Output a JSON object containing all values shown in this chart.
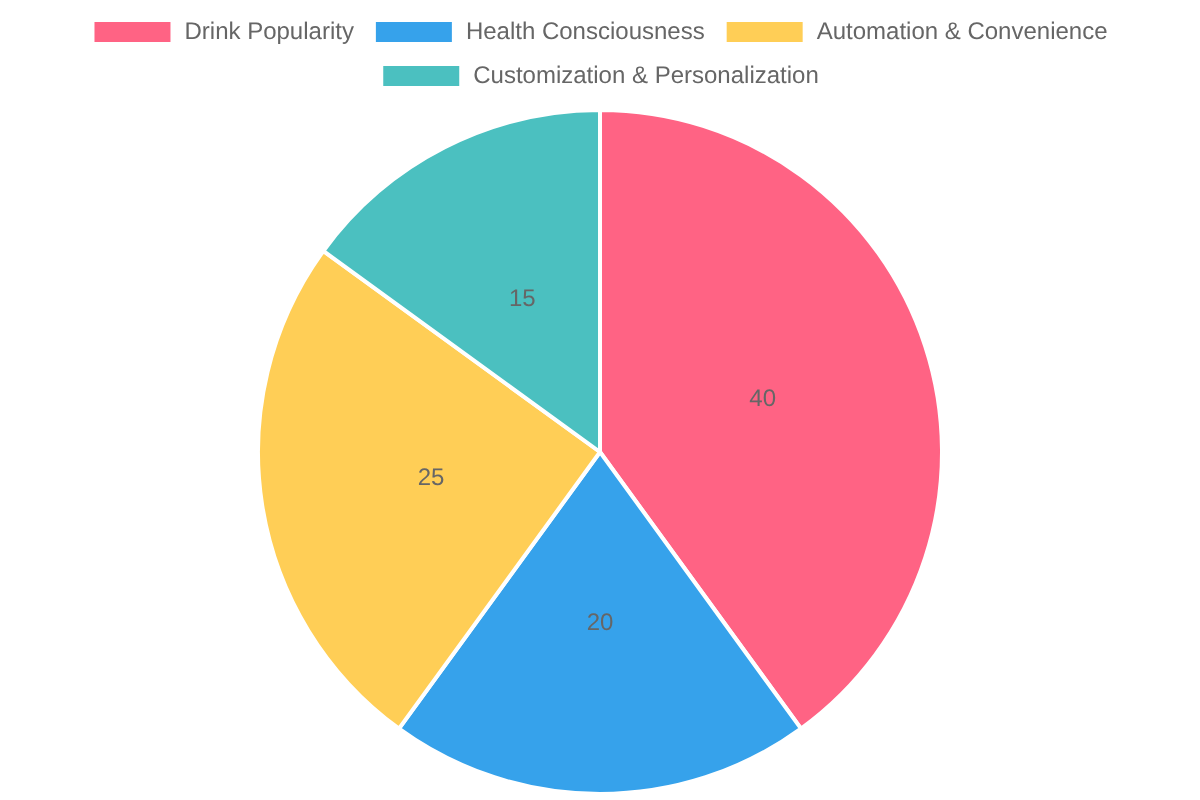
{
  "chart_data": {
    "type": "pie",
    "categories": [
      "Drink Popularity",
      "Health Consciousness",
      "Automation & Convenience",
      "Customization & Personalization"
    ],
    "values": [
      40,
      20,
      25,
      15
    ],
    "colors": [
      "#ff6384",
      "#36a2eb",
      "#ffce56",
      "#4bc0c0"
    ],
    "legend": "top",
    "data_labels": true
  }
}
